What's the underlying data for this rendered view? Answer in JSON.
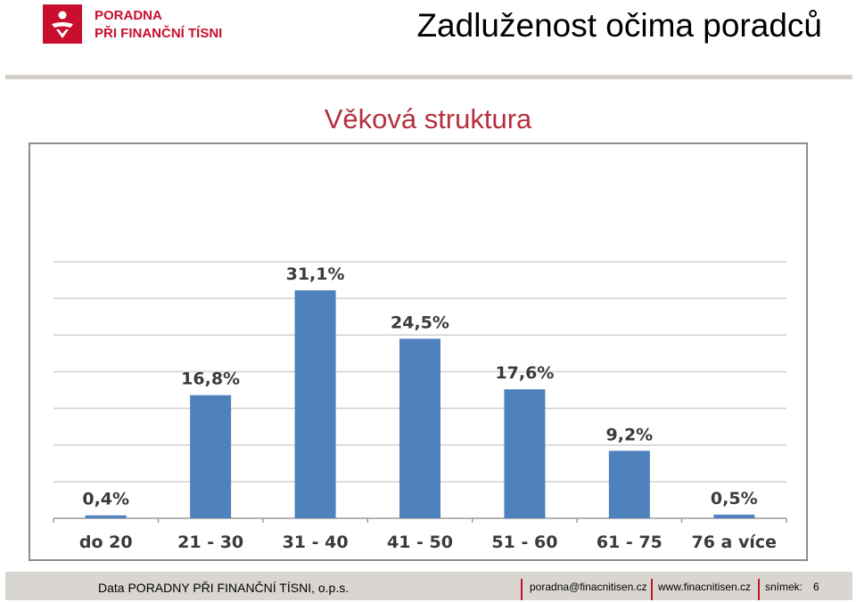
{
  "header": {
    "logo_line1": "PORADNA",
    "logo_line2": "PŘI FINANČNÍ TÍSNI",
    "logo_icon": "person-silhouette-icon",
    "page_title": "Zadluženost očima poradců"
  },
  "chart_data": {
    "type": "bar",
    "title": "Věková struktura",
    "xlabel": "",
    "ylabel": "",
    "categories": [
      "do 20",
      "21 - 30",
      "31 - 40",
      "41 - 50",
      "51 - 60",
      "61 - 75",
      "76 a více"
    ],
    "values": [
      0.4,
      16.8,
      31.1,
      24.5,
      17.6,
      9.2,
      0.5
    ],
    "data_labels": [
      "0,4%",
      "16,8%",
      "31,1%",
      "24,5%",
      "17,6%",
      "9,2%",
      "0,5%"
    ],
    "ylim": [
      0,
      35
    ],
    "grid": true,
    "bar_color": "#4f81bd"
  },
  "footer": {
    "source": "Data PORADNY PŘI FINANČNÍ TÍSNI, o.p.s.",
    "email": "poradna@finacnitisen.cz",
    "web": "www.finacnitisen.cz",
    "slide_label": "snímek:",
    "slide_number": "6"
  },
  "colors": {
    "accent": "#c8102e",
    "title": "#b52f3d"
  }
}
